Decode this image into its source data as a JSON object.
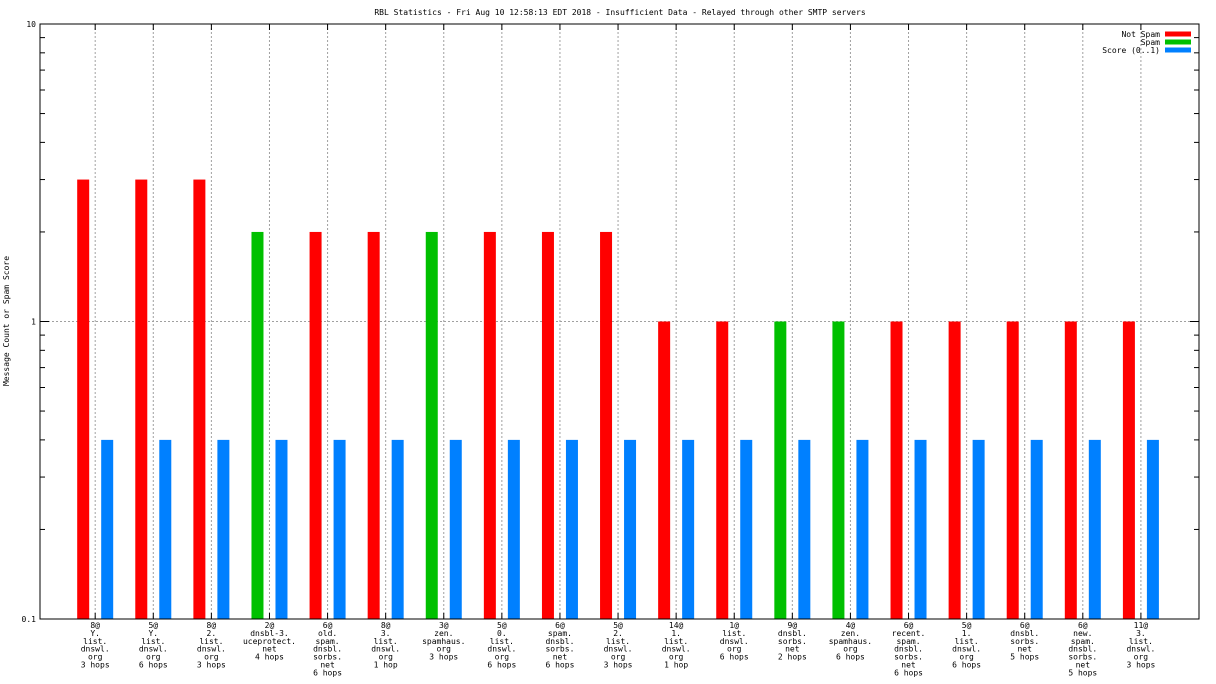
{
  "chart_data": {
    "type": "bar",
    "title": "RBL Statistics - Fri Aug 10 12:58:13 EDT 2018 - Insufficient Data - Relayed through other SMTP servers",
    "xlabel": "",
    "ylabel": "Message Count or Spam Score",
    "yscale": "log",
    "ylim": [
      0.1,
      10
    ],
    "yticks": [
      "0.1",
      "1",
      "10"
    ],
    "grid": true,
    "legend_position": "top-right",
    "categories": [
      [
        "8@",
        "Y.",
        "list.",
        "dnswl.",
        "org",
        "3 hops"
      ],
      [
        "5@",
        "Y.",
        "list.",
        "dnswl.",
        "org",
        "6 hops"
      ],
      [
        "8@",
        "2.",
        "list.",
        "dnswl.",
        "org",
        "3 hops"
      ],
      [
        "2@",
        "dnsbl-3.",
        "uceprotect.",
        "net",
        "4 hops"
      ],
      [
        "6@",
        "old.",
        "spam.",
        "dnsbl.",
        "sorbs.",
        "net",
        "6 hops"
      ],
      [
        "8@",
        "3.",
        "list.",
        "dnswl.",
        "org",
        "1 hop"
      ],
      [
        "3@",
        "zen.",
        "spamhaus.",
        "org",
        "3 hops"
      ],
      [
        "5@",
        "0.",
        "list.",
        "dnswl.",
        "org",
        "6 hops"
      ],
      [
        "6@",
        "spam.",
        "dnsbl.",
        "sorbs.",
        "net",
        "6 hops"
      ],
      [
        "5@",
        "2.",
        "list.",
        "dnswl.",
        "org",
        "3 hops"
      ],
      [
        "14@",
        "1.",
        "list.",
        "dnswl.",
        "org",
        "1 hop"
      ],
      [
        "1@",
        "list.",
        "dnswl.",
        "org",
        "6 hops"
      ],
      [
        "9@",
        "dnsbl.",
        "sorbs.",
        "net",
        "2 hops"
      ],
      [
        "4@",
        "zen.",
        "spamhaus.",
        "org",
        "6 hops"
      ],
      [
        "6@",
        "recent.",
        "spam.",
        "dnsbl.",
        "sorbs.",
        "net",
        "6 hops"
      ],
      [
        "5@",
        "1.",
        "list.",
        "dnswl.",
        "org",
        "6 hops"
      ],
      [
        "6@",
        "dnsbl.",
        "sorbs.",
        "net",
        "5 hops"
      ],
      [
        "6@",
        "new.",
        "spam.",
        "dnsbl.",
        "sorbs.",
        "net",
        "5 hops"
      ],
      [
        "11@",
        "3.",
        "list.",
        "dnswl.",
        "org",
        "3 hops"
      ]
    ],
    "series": [
      {
        "name": "Not Spam",
        "color": "#ff0000",
        "values": [
          3,
          3,
          3,
          null,
          2,
          2,
          null,
          2,
          2,
          2,
          1,
          1,
          null,
          null,
          1,
          1,
          1,
          1,
          1
        ]
      },
      {
        "name": "Spam",
        "color": "#00c000",
        "values": [
          null,
          null,
          null,
          2,
          null,
          null,
          2,
          null,
          null,
          null,
          null,
          null,
          1,
          1,
          null,
          null,
          null,
          null,
          null
        ]
      },
      {
        "name": "Score (0..1)",
        "color": "#0080ff",
        "values": [
          0.4,
          0.4,
          0.4,
          0.4,
          0.4,
          0.4,
          0.4,
          0.4,
          0.4,
          0.4,
          0.4,
          0.4,
          0.4,
          0.4,
          0.4,
          0.4,
          0.4,
          0.4,
          0.4
        ]
      }
    ]
  }
}
